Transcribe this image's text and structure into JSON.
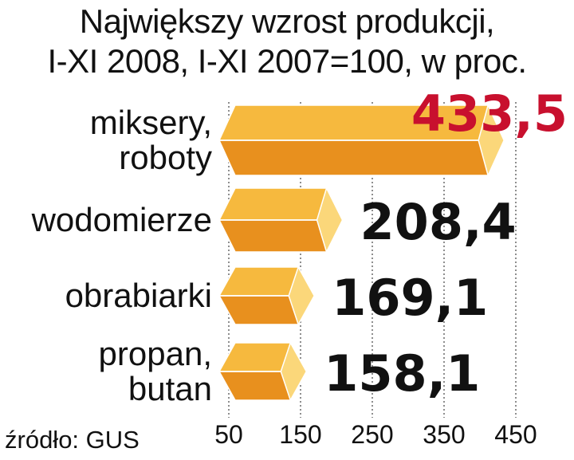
{
  "chart_data": {
    "type": "bar",
    "orientation": "horizontal",
    "title_lines": [
      "Największy wzrost produkcji,",
      "I-XI 2008, I-XI 2007=100, w proc."
    ],
    "categories": [
      [
        "miksery,",
        "roboty"
      ],
      [
        "wodomierze"
      ],
      [
        "obrabiarki"
      ],
      [
        "propan,",
        "butan"
      ]
    ],
    "values": [
      433.5,
      208.4,
      169.1,
      158.1
    ],
    "value_labels": [
      "433,5",
      "208,4",
      "169,1",
      "158,1"
    ],
    "xlim": [
      50,
      450
    ],
    "xticks": [
      50,
      150,
      250,
      350,
      450
    ],
    "grid": true,
    "highlight_color": "#c8102e",
    "value_color": "#111111",
    "bar_top_color": "#f6b93e",
    "bar_bottom_color": "#e8901e",
    "bar_cap_color": "#fbd77a",
    "source": "źródło: GUS"
  }
}
